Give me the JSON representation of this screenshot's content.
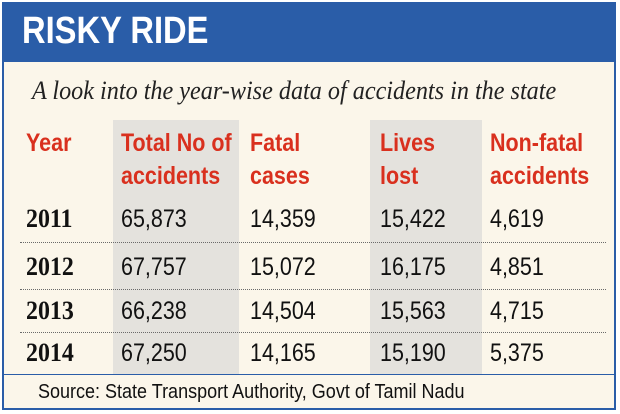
{
  "title": "RISKY RIDE",
  "subtitle": "A look into the year-wise data of accidents in the state",
  "source": "Source: State Transport Authority, Govt of Tamil Nadu",
  "colors": {
    "title_band": "#2a5da8",
    "header_text": "#d9301e",
    "background": "#fbf6ea",
    "shaded_column": "#e4e2dd"
  },
  "chart_data": {
    "type": "table",
    "title": "RISKY RIDE",
    "subtitle": "A look into the year-wise data of accidents in the state",
    "columns": [
      [
        "Year"
      ],
      [
        "Total No of",
        "accidents"
      ],
      [
        "Fatal",
        "cases"
      ],
      [
        "Lives",
        "lost"
      ],
      [
        "Non-fatal",
        "accidents"
      ]
    ],
    "rows": [
      [
        "2011",
        "65,873",
        "14,359",
        "15,422",
        "4,619"
      ],
      [
        "2012",
        "67,757",
        "15,072",
        "16,175",
        "4,851"
      ],
      [
        "2013",
        "66,238",
        "14,504",
        "15,563",
        "4,715"
      ],
      [
        "2014",
        "67,250",
        "14,165",
        "15,190",
        "5,375"
      ]
    ]
  }
}
